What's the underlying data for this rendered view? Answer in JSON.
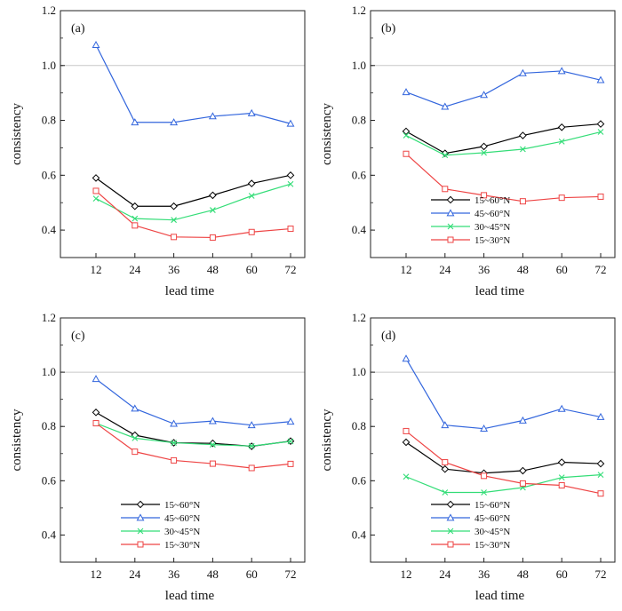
{
  "chart_data": [
    {
      "type": "line",
      "panel_label": "(a)",
      "xlabel": "lead time",
      "ylabel": "consistency",
      "x": [
        12,
        24,
        36,
        48,
        60,
        72
      ],
      "xticks": [
        "12",
        "24",
        "36",
        "48",
        "60",
        "72"
      ],
      "ylim": [
        0.3,
        1.2
      ],
      "yticks": [
        "0.4",
        "0.6",
        "0.8",
        "1.0",
        "1.2"
      ],
      "reference_line": 1.0,
      "legend": null,
      "series": [
        {
          "name": "15~60°N",
          "color": "#000000",
          "marker": "diamond",
          "values": [
            0.59,
            0.487,
            0.487,
            0.527,
            0.57,
            0.6
          ]
        },
        {
          "name": "45~60°N",
          "color": "#3366dd",
          "marker": "triangle",
          "values": [
            1.075,
            0.793,
            0.793,
            0.815,
            0.826,
            0.788
          ]
        },
        {
          "name": "30~45°N",
          "color": "#33dd77",
          "marker": "x",
          "values": [
            0.515,
            0.442,
            0.437,
            0.473,
            0.525,
            0.568
          ]
        },
        {
          "name": "15~30°N",
          "color": "#ee4444",
          "marker": "square",
          "values": [
            0.543,
            0.417,
            0.375,
            0.373,
            0.393,
            0.405
          ]
        }
      ]
    },
    {
      "type": "line",
      "panel_label": "(b)",
      "xlabel": "lead time",
      "ylabel": "consistency",
      "x": [
        12,
        24,
        36,
        48,
        60,
        72
      ],
      "xticks": [
        "12",
        "24",
        "36",
        "48",
        "60",
        "72"
      ],
      "ylim": [
        0.3,
        1.2
      ],
      "yticks": [
        "0.4",
        "0.6",
        "0.8",
        "1.0",
        "1.2"
      ],
      "reference_line": 1.0,
      "legend": "bottom-center",
      "series": [
        {
          "name": "15~60°N",
          "color": "#000000",
          "marker": "diamond",
          "values": [
            0.76,
            0.68,
            0.705,
            0.745,
            0.775,
            0.787
          ]
        },
        {
          "name": "45~60°N",
          "color": "#3366dd",
          "marker": "triangle",
          "values": [
            0.903,
            0.85,
            0.893,
            0.972,
            0.98,
            0.947
          ]
        },
        {
          "name": "30~45°N",
          "color": "#33dd77",
          "marker": "x",
          "values": [
            0.745,
            0.673,
            0.682,
            0.695,
            0.723,
            0.758
          ]
        },
        {
          "name": "15~30°N",
          "color": "#ee4444",
          "marker": "square",
          "values": [
            0.678,
            0.55,
            0.527,
            0.505,
            0.518,
            0.522
          ]
        }
      ]
    },
    {
      "type": "line",
      "panel_label": "(c)",
      "xlabel": "lead time",
      "ylabel": "consistency",
      "x": [
        12,
        24,
        36,
        48,
        60,
        72
      ],
      "xticks": [
        "12",
        "24",
        "36",
        "48",
        "60",
        "72"
      ],
      "ylim": [
        0.3,
        1.2
      ],
      "yticks": [
        "0.4",
        "0.6",
        "0.8",
        "1.0",
        "1.2"
      ],
      "reference_line": 1.0,
      "legend": "bottom-center",
      "series": [
        {
          "name": "15~60°N",
          "color": "#000000",
          "marker": "diamond",
          "values": [
            0.852,
            0.768,
            0.74,
            0.738,
            0.727,
            0.746
          ]
        },
        {
          "name": "45~60°N",
          "color": "#3366dd",
          "marker": "triangle",
          "values": [
            0.975,
            0.866,
            0.81,
            0.82,
            0.805,
            0.818
          ]
        },
        {
          "name": "30~45°N",
          "color": "#33dd77",
          "marker": "x",
          "values": [
            0.812,
            0.757,
            0.74,
            0.733,
            0.728,
            0.745
          ]
        },
        {
          "name": "15~30°N",
          "color": "#ee4444",
          "marker": "square",
          "values": [
            0.812,
            0.707,
            0.675,
            0.663,
            0.647,
            0.662
          ]
        }
      ]
    },
    {
      "type": "line",
      "panel_label": "(d)",
      "xlabel": "lead time",
      "ylabel": "consistency",
      "x": [
        12,
        24,
        36,
        48,
        60,
        72
      ],
      "xticks": [
        "12",
        "24",
        "36",
        "48",
        "60",
        "72"
      ],
      "ylim": [
        0.3,
        1.2
      ],
      "yticks": [
        "0.4",
        "0.6",
        "0.8",
        "1.0",
        "1.2"
      ],
      "reference_line": 1.0,
      "legend": "bottom-center",
      "series": [
        {
          "name": "15~60°N",
          "color": "#000000",
          "marker": "diamond",
          "values": [
            0.742,
            0.643,
            0.628,
            0.637,
            0.668,
            0.663
          ]
        },
        {
          "name": "45~60°N",
          "color": "#3366dd",
          "marker": "triangle",
          "values": [
            1.05,
            0.805,
            0.792,
            0.822,
            0.865,
            0.835
          ]
        },
        {
          "name": "30~45°N",
          "color": "#33dd77",
          "marker": "x",
          "values": [
            0.615,
            0.557,
            0.557,
            0.575,
            0.612,
            0.622
          ]
        },
        {
          "name": "15~30°N",
          "color": "#ee4444",
          "marker": "square",
          "values": [
            0.783,
            0.668,
            0.618,
            0.59,
            0.583,
            0.553
          ]
        }
      ]
    }
  ]
}
